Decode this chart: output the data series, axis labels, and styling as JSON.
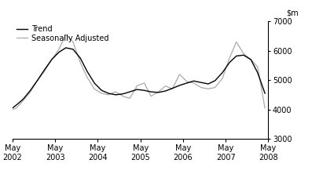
{
  "title": "",
  "ylim": [
    3000,
    7000
  ],
  "yticks": [
    3000,
    4000,
    5000,
    6000,
    7000
  ],
  "legend_entries": [
    "Trend",
    "Seasonally Adjusted"
  ],
  "trend_color": "#000000",
  "seasonal_color": "#aaaaaa",
  "background_color": "#ffffff",
  "trend_lw": 1.0,
  "seasonal_lw": 0.9,
  "trend": {
    "x": [
      2002.33,
      2002.42,
      2002.58,
      2002.75,
      2002.92,
      2003.08,
      2003.25,
      2003.42,
      2003.58,
      2003.75,
      2003.92,
      2004.08,
      2004.25,
      2004.42,
      2004.58,
      2004.75,
      2004.92,
      2005.08,
      2005.25,
      2005.42,
      2005.58,
      2005.75,
      2005.92,
      2006.08,
      2006.25,
      2006.42,
      2006.58,
      2006.75,
      2006.92,
      2007.08,
      2007.25,
      2007.42,
      2007.58,
      2007.75,
      2007.92,
      2008.08,
      2008.25
    ],
    "y": [
      4050,
      4150,
      4350,
      4650,
      5000,
      5350,
      5700,
      5950,
      6100,
      6050,
      5750,
      5300,
      4900,
      4650,
      4550,
      4500,
      4530,
      4600,
      4680,
      4650,
      4600,
      4580,
      4630,
      4720,
      4820,
      4900,
      4970,
      4920,
      4870,
      4980,
      5250,
      5600,
      5820,
      5850,
      5700,
      5250,
      4550
    ]
  },
  "seasonal": {
    "x": [
      2002.33,
      2002.42,
      2002.58,
      2002.75,
      2002.92,
      2003.08,
      2003.25,
      2003.42,
      2003.58,
      2003.75,
      2003.92,
      2004.08,
      2004.25,
      2004.42,
      2004.58,
      2004.75,
      2004.92,
      2005.08,
      2005.25,
      2005.42,
      2005.58,
      2005.75,
      2005.92,
      2006.08,
      2006.25,
      2006.42,
      2006.58,
      2006.75,
      2006.92,
      2007.08,
      2007.25,
      2007.42,
      2007.58,
      2007.75,
      2007.92,
      2008.08,
      2008.25
    ],
    "y": [
      4000,
      4050,
      4300,
      4600,
      5000,
      5300,
      5700,
      6050,
      6550,
      6300,
      5600,
      5100,
      4700,
      4550,
      4500,
      4600,
      4450,
      4380,
      4800,
      4900,
      4450,
      4600,
      4800,
      4700,
      5200,
      4950,
      4900,
      4750,
      4700,
      4750,
      5050,
      5750,
      6300,
      5900,
      5700,
      5450,
      4050
    ]
  },
  "xlim": [
    2002.33,
    2008.33
  ],
  "xtick_positions": [
    2002.33,
    2003.33,
    2004.33,
    2005.33,
    2006.33,
    2007.33,
    2008.33
  ],
  "xtick_labels": [
    "May\n2002",
    "May\n2003",
    "May\n2004",
    "May\n2005",
    "May\n2006",
    "May\n2007",
    "May\n2008"
  ]
}
